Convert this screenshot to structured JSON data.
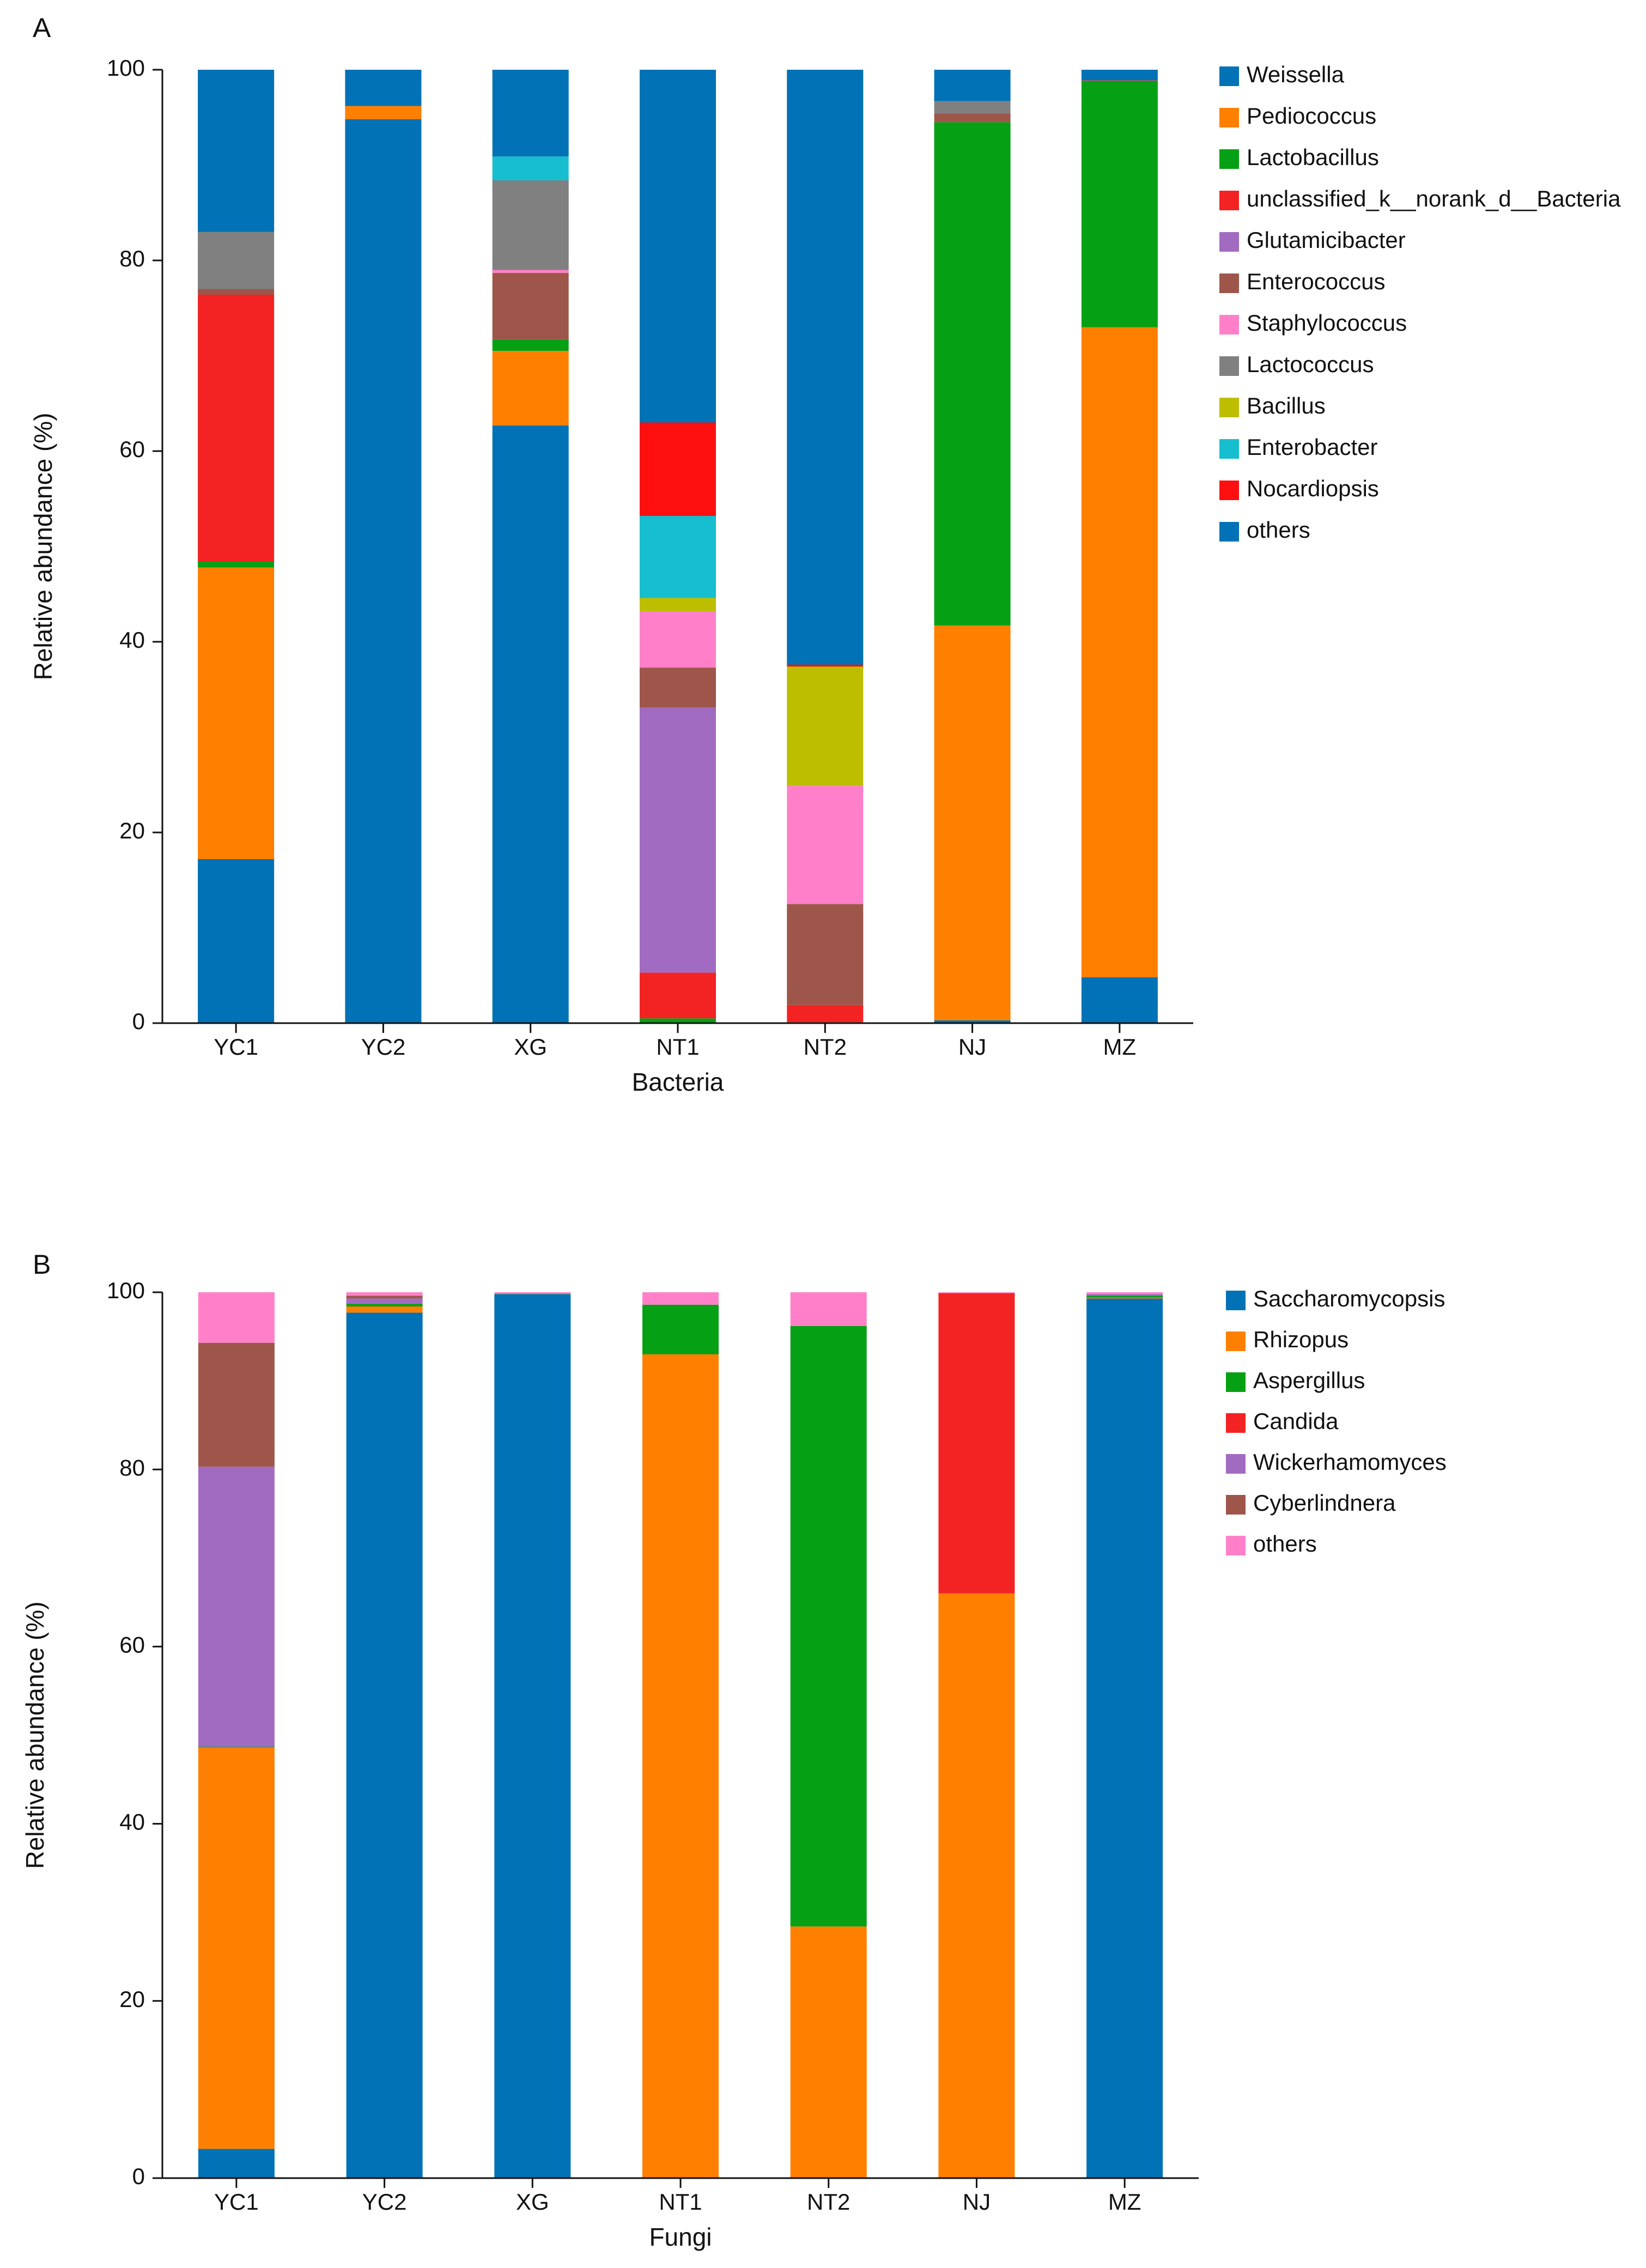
{
  "chart_data": [
    {
      "type": "bar",
      "stacked": true,
      "panel_label": "A",
      "title": "",
      "xlabel": "Bacteria",
      "ylabel": "Relative abundance (%)",
      "ylim": [
        0,
        100
      ],
      "yticks": [
        0,
        20,
        40,
        60,
        80,
        100
      ],
      "categories": [
        "YC1",
        "YC2",
        "XG",
        "NT1",
        "NT2",
        "NJ",
        "MZ"
      ],
      "legend_position": "right",
      "series": [
        {
          "name": "Weissella",
          "color": "#0072B5",
          "values": [
            17.2,
            94.8,
            62.7,
            0.0,
            0.0,
            0.3,
            4.8
          ]
        },
        {
          "name": "Pediococcus",
          "color": "#FF7F00",
          "values": [
            30.6,
            1.4,
            7.8,
            0.0,
            0.0,
            41.4,
            68.2
          ]
        },
        {
          "name": "Lactobacillus",
          "color": "#05A014",
          "values": [
            0.6,
            0.0,
            1.2,
            0.5,
            0.1,
            52.8,
            25.8
          ]
        },
        {
          "name": "unclassified_k__norank_d__Bacteria",
          "color": "#F42323",
          "values": [
            28.0,
            0.0,
            0.0,
            4.8,
            1.8,
            0.0,
            0.0
          ]
        },
        {
          "name": "Glutamicibacter",
          "color": "#A16BC2",
          "values": [
            0.0,
            0.0,
            0.0,
            27.8,
            0.0,
            0.0,
            0.0
          ]
        },
        {
          "name": "Enterococcus",
          "color": "#9E564A",
          "values": [
            0.6,
            0.0,
            7.0,
            4.2,
            10.6,
            0.9,
            0.1
          ]
        },
        {
          "name": "Staphylococcus",
          "color": "#FF80C8",
          "values": [
            0.0,
            0.0,
            0.3,
            5.9,
            12.4,
            0.0,
            0.0
          ]
        },
        {
          "name": "Lactococcus",
          "color": "#808080",
          "values": [
            6.0,
            0.0,
            9.4,
            0.0,
            0.0,
            1.3,
            0.0
          ]
        },
        {
          "name": "Bacillus",
          "color": "#BDBE00",
          "values": [
            0.0,
            0.0,
            0.0,
            1.4,
            12.5,
            0.0,
            0.0
          ]
        },
        {
          "name": "Enterobacter",
          "color": "#17BECF",
          "values": [
            0.0,
            0.0,
            2.5,
            8.6,
            0.0,
            0.0,
            0.0
          ]
        },
        {
          "name": "Nocardiopsis",
          "color": "#FF1010",
          "values": [
            0.0,
            0.0,
            0.0,
            9.8,
            0.2,
            0.0,
            0.0
          ]
        },
        {
          "name": "others",
          "color": "#0072B5",
          "values": [
            17.0,
            3.8,
            9.1,
            37.0,
            62.4,
            3.3,
            1.1
          ]
        }
      ]
    },
    {
      "type": "bar",
      "stacked": true,
      "panel_label": "B",
      "title": "",
      "xlabel": "Fungi",
      "ylabel": "Relative abundance (%)",
      "ylim": [
        0,
        100
      ],
      "yticks": [
        0,
        20,
        40,
        60,
        80,
        100
      ],
      "categories": [
        "YC1",
        "YC2",
        "XG",
        "NT1",
        "NT2",
        "NJ",
        "MZ"
      ],
      "legend_position": "right",
      "series": [
        {
          "name": "Saccharomycopsis",
          "color": "#0072B5",
          "values": [
            3.3,
            97.7,
            99.8,
            0.0,
            0.0,
            0.0,
            99.3
          ]
        },
        {
          "name": "Rhizopus",
          "color": "#FF7F00",
          "values": [
            45.3,
            0.7,
            0.1,
            93.0,
            28.4,
            66.0,
            0.1
          ]
        },
        {
          "name": "Aspergillus",
          "color": "#05A014",
          "values": [
            0.1,
            0.3,
            0.0,
            5.6,
            67.8,
            0.0,
            0.2
          ]
        },
        {
          "name": "Candida",
          "color": "#F42323",
          "values": [
            0.0,
            0.0,
            0.0,
            0.0,
            0.0,
            33.9,
            0.0
          ]
        },
        {
          "name": "Wickerhamomyces",
          "color": "#A16BC2",
          "values": [
            31.6,
            0.6,
            0.0,
            0.0,
            0.0,
            0.0,
            0.2
          ]
        },
        {
          "name": "Cyberlindnera",
          "color": "#9E564A",
          "values": [
            14.0,
            0.3,
            0.0,
            0.0,
            0.0,
            0.0,
            0.0
          ]
        },
        {
          "name": "others",
          "color": "#FF80C8",
          "values": [
            5.7,
            0.4,
            0.1,
            1.4,
            3.8,
            0.1,
            0.2
          ]
        }
      ]
    }
  ]
}
